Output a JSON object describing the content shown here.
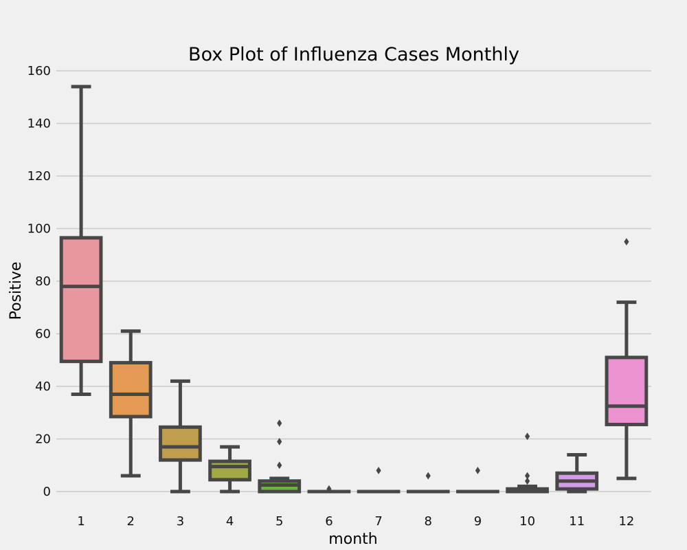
{
  "chart_data": {
    "type": "box",
    "title": "Box Plot of Influenza Cases Monthly",
    "xlabel": "month",
    "ylabel": "Positive",
    "ylim": [
      -5,
      165
    ],
    "yticks": [
      0,
      20,
      40,
      60,
      80,
      100,
      120,
      140,
      160
    ],
    "grid": "horizontal",
    "categories": [
      "1",
      "2",
      "3",
      "4",
      "5",
      "6",
      "7",
      "8",
      "9",
      "10",
      "11",
      "12"
    ],
    "boxes": [
      {
        "category": "1",
        "whisker_low": 37,
        "q1": 49.5,
        "median": 78,
        "q3": 96.5,
        "whisker_high": 154,
        "outliers": [],
        "color": "#e8979f"
      },
      {
        "category": "2",
        "whisker_low": 6,
        "q1": 28.5,
        "median": 37,
        "q3": 49,
        "whisker_high": 61,
        "outliers": [],
        "color": "#e39a52"
      },
      {
        "category": "3",
        "whisker_low": 0,
        "q1": 12,
        "median": 17,
        "q3": 24.5,
        "whisker_high": 42,
        "outliers": [],
        "color": "#bf9f4f"
      },
      {
        "category": "4",
        "whisker_low": 0,
        "q1": 4.5,
        "median": 9.5,
        "q3": 11.5,
        "whisker_high": 17,
        "outliers": [],
        "color": "#a2a844"
      },
      {
        "category": "5",
        "whisker_low": 0,
        "q1": 0,
        "median": 2.5,
        "q3": 4,
        "whisker_high": 5,
        "outliers": [
          10,
          19,
          26
        ],
        "color": "#6bb545"
      },
      {
        "category": "6",
        "whisker_low": 0,
        "q1": 0,
        "median": 0,
        "q3": 0,
        "whisker_high": 0,
        "outliers": [
          1
        ],
        "color": "#4db58f"
      },
      {
        "category": "7",
        "whisker_low": 0,
        "q1": 0,
        "median": 0,
        "q3": 0,
        "whisker_high": 0,
        "outliers": [
          8
        ],
        "color": "#4fb1a9"
      },
      {
        "category": "8",
        "whisker_low": 0,
        "q1": 0,
        "median": 0,
        "q3": 0,
        "whisker_high": 0,
        "outliers": [
          6
        ],
        "color": "#52aec2"
      },
      {
        "category": "9",
        "whisker_low": 0,
        "q1": 0,
        "median": 0,
        "q3": 0,
        "whisker_high": 0,
        "outliers": [
          8
        ],
        "color": "#5aa9dc"
      },
      {
        "category": "10",
        "whisker_low": 0,
        "q1": 0,
        "median": 0.5,
        "q3": 1,
        "whisker_high": 2,
        "outliers": [
          4,
          6,
          21
        ],
        "color": "#9aa7ea"
      },
      {
        "category": "11",
        "whisker_low": 0,
        "q1": 1,
        "median": 4,
        "q3": 7,
        "whisker_high": 14,
        "outliers": [],
        "color": "#d69be8"
      },
      {
        "category": "12",
        "whisker_low": 5,
        "q1": 25.5,
        "median": 32.5,
        "q3": 51,
        "whisker_high": 72,
        "outliers": [
          95
        ],
        "color": "#ec92d0"
      }
    ]
  }
}
